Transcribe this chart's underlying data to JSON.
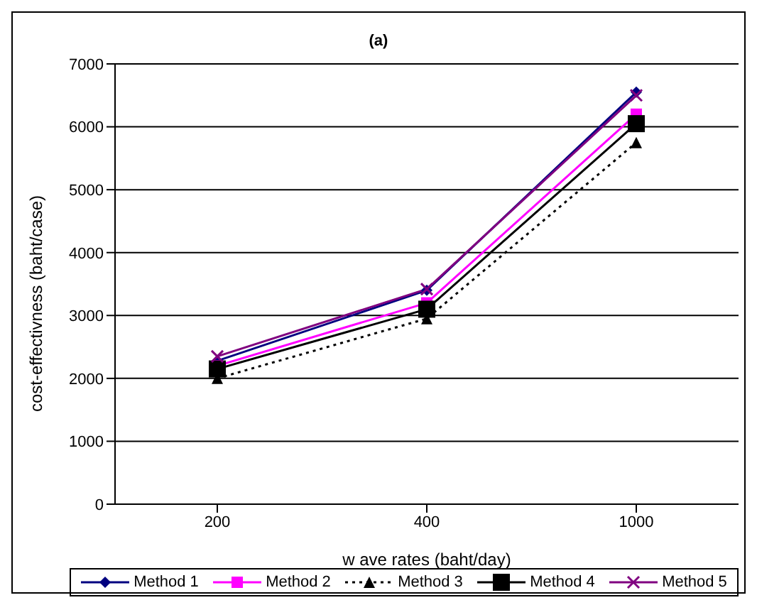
{
  "chart_data": {
    "type": "line",
    "title": "(a)",
    "xlabel": "w ave rates (baht/day)",
    "ylabel": "cost-effectivness (baht/case)",
    "categories": [
      "200",
      "400",
      "1000"
    ],
    "series": [
      {
        "name": "Method 1",
        "color": "#000080",
        "marker": "diamond",
        "line_style": "solid",
        "values": [
          2280,
          3400,
          6550
        ]
      },
      {
        "name": "Method 2",
        "color": "#ff00ff",
        "marker": "square",
        "line_style": "solid",
        "values": [
          2200,
          3200,
          6200
        ]
      },
      {
        "name": "Method 3",
        "color": "#000000",
        "marker": "triangle",
        "line_style": "dotted",
        "values": [
          2000,
          2950,
          5750
        ]
      },
      {
        "name": "Method 4",
        "color": "#000000",
        "marker": "square",
        "line_style": "solid",
        "values": [
          2150,
          3100,
          6050
        ]
      },
      {
        "name": "Method 5",
        "color": "#800080",
        "marker": "cross",
        "line_style": "solid",
        "values": [
          2350,
          3420,
          6500
        ]
      }
    ],
    "ylim": [
      0,
      7000
    ],
    "yticks": [
      0,
      1000,
      2000,
      3000,
      4000,
      5000,
      6000,
      7000
    ],
    "grid": "y",
    "legend": "bottom"
  }
}
